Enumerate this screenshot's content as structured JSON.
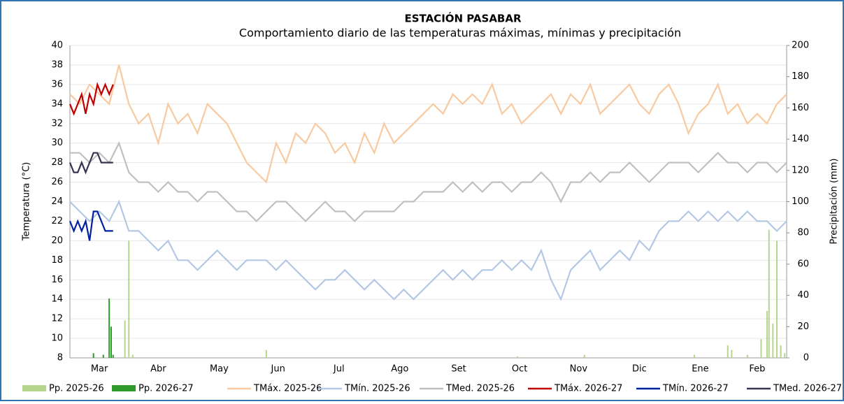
{
  "chart_data": {
    "type": "line",
    "title": "ESTACIÓN PASABAR",
    "subtitle": "Comportamiento diario de las temperaturas máximas, mínimas  y precipitación",
    "ylabel": "Temperatura (°C)",
    "y2label": "Precipitación (mm)",
    "xlim": [
      0,
      365
    ],
    "xticks": [
      {
        "value": 15,
        "label": "Mar"
      },
      {
        "value": 45,
        "label": "Abr"
      },
      {
        "value": 76,
        "label": "May"
      },
      {
        "value": 106,
        "label": "Jun"
      },
      {
        "value": 137,
        "label": "Jul"
      },
      {
        "value": 168,
        "label": "Ago"
      },
      {
        "value": 198,
        "label": "Set"
      },
      {
        "value": 229,
        "label": "Oct"
      },
      {
        "value": 259,
        "label": "Nov"
      },
      {
        "value": 290,
        "label": "Dic"
      },
      {
        "value": 321,
        "label": "Ene"
      },
      {
        "value": 350,
        "label": "Feb"
      }
    ],
    "ylim": [
      8,
      40
    ],
    "yticks": [
      8,
      10,
      12,
      14,
      16,
      18,
      20,
      22,
      24,
      26,
      28,
      30,
      32,
      34,
      36,
      38,
      40
    ],
    "y2lim": [
      0,
      200
    ],
    "y2ticks": [
      0,
      20,
      40,
      60,
      80,
      100,
      120,
      140,
      160,
      180,
      200
    ],
    "grid": true,
    "series": [
      {
        "name": "Pp. 2025-26",
        "type": "bar",
        "axis": "y2",
        "color": "#b5d48c",
        "x": [
          28,
          30,
          32,
          100,
          228,
          262,
          318,
          335,
          337,
          345,
          352,
          355,
          356,
          358,
          360,
          362,
          364
        ],
        "values": [
          24,
          75,
          2,
          5,
          1,
          2,
          2,
          8,
          5,
          2,
          12,
          30,
          82,
          22,
          75,
          8,
          3
        ]
      },
      {
        "name": "Pp. 2026-27",
        "type": "bar",
        "axis": "y2",
        "color": "#2e9a2e",
        "x": [
          12,
          17,
          20,
          21,
          22
        ],
        "values": [
          3,
          2,
          38,
          20,
          2
        ]
      },
      {
        "name": "TMáx. 2025-26",
        "type": "line",
        "color": "#f9c9a0",
        "x": [
          0,
          5,
          10,
          15,
          20,
          25,
          30,
          35,
          40,
          45,
          50,
          55,
          60,
          65,
          70,
          75,
          80,
          85,
          90,
          95,
          100,
          105,
          110,
          115,
          120,
          125,
          130,
          135,
          140,
          145,
          150,
          155,
          160,
          165,
          170,
          175,
          180,
          185,
          190,
          195,
          200,
          205,
          210,
          215,
          220,
          225,
          230,
          235,
          240,
          245,
          250,
          255,
          260,
          265,
          270,
          275,
          280,
          285,
          290,
          295,
          300,
          305,
          310,
          315,
          320,
          325,
          330,
          335,
          340,
          345,
          350,
          355,
          360,
          365
        ],
        "values": [
          35,
          34,
          36,
          35,
          34,
          38,
          34,
          32,
          33,
          30,
          34,
          32,
          33,
          31,
          34,
          33,
          32,
          30,
          28,
          27,
          26,
          30,
          28,
          31,
          30,
          32,
          31,
          29,
          30,
          28,
          31,
          29,
          32,
          30,
          31,
          32,
          33,
          34,
          33,
          35,
          34,
          35,
          34,
          36,
          33,
          34,
          32,
          33,
          34,
          35,
          33,
          35,
          34,
          36,
          33,
          34,
          35,
          36,
          34,
          33,
          35,
          36,
          34,
          31,
          33,
          34,
          36,
          33,
          34,
          32,
          33,
          32,
          34,
          35
        ]
      },
      {
        "name": "TMín. 2025-26",
        "type": "line",
        "color": "#b4c8e4",
        "x": [
          0,
          5,
          10,
          15,
          20,
          25,
          30,
          35,
          40,
          45,
          50,
          55,
          60,
          65,
          70,
          75,
          80,
          85,
          90,
          95,
          100,
          105,
          110,
          115,
          120,
          125,
          130,
          135,
          140,
          145,
          150,
          155,
          160,
          165,
          170,
          175,
          180,
          185,
          190,
          195,
          200,
          205,
          210,
          215,
          220,
          225,
          230,
          235,
          240,
          245,
          250,
          255,
          260,
          265,
          270,
          275,
          280,
          285,
          290,
          295,
          300,
          305,
          310,
          315,
          320,
          325,
          330,
          335,
          340,
          345,
          350,
          355,
          360,
          365
        ],
        "values": [
          24,
          23,
          22,
          23,
          22,
          24,
          21,
          21,
          20,
          19,
          20,
          18,
          18,
          17,
          18,
          19,
          18,
          17,
          18,
          18,
          18,
          17,
          18,
          17,
          16,
          15,
          16,
          16,
          17,
          16,
          15,
          16,
          15,
          14,
          15,
          14,
          15,
          16,
          17,
          16,
          17,
          16,
          17,
          17,
          18,
          17,
          18,
          17,
          19,
          16,
          14,
          17,
          18,
          19,
          17,
          18,
          19,
          18,
          20,
          19,
          21,
          22,
          22,
          23,
          22,
          23,
          22,
          23,
          22,
          23,
          22,
          22,
          21,
          22
        ]
      },
      {
        "name": "TMed. 2025-26",
        "type": "line",
        "color": "#c0c0c0",
        "x": [
          0,
          5,
          10,
          15,
          20,
          25,
          30,
          35,
          40,
          45,
          50,
          55,
          60,
          65,
          70,
          75,
          80,
          85,
          90,
          95,
          100,
          105,
          110,
          115,
          120,
          125,
          130,
          135,
          140,
          145,
          150,
          155,
          160,
          165,
          170,
          175,
          180,
          185,
          190,
          195,
          200,
          205,
          210,
          215,
          220,
          225,
          230,
          235,
          240,
          245,
          250,
          255,
          260,
          265,
          270,
          275,
          280,
          285,
          290,
          295,
          300,
          305,
          310,
          315,
          320,
          325,
          330,
          335,
          340,
          345,
          350,
          355,
          360,
          365
        ],
        "values": [
          29,
          29,
          28,
          29,
          28,
          30,
          27,
          26,
          26,
          25,
          26,
          25,
          25,
          24,
          25,
          25,
          24,
          23,
          23,
          22,
          23,
          24,
          24,
          23,
          22,
          23,
          24,
          23,
          23,
          22,
          23,
          23,
          23,
          23,
          24,
          24,
          25,
          25,
          25,
          26,
          25,
          26,
          25,
          26,
          26,
          25,
          26,
          26,
          27,
          26,
          24,
          26,
          26,
          27,
          26,
          27,
          27,
          28,
          27,
          26,
          27,
          28,
          28,
          28,
          27,
          28,
          29,
          28,
          28,
          27,
          28,
          28,
          27,
          28
        ]
      },
      {
        "name": "TMáx. 2026-27",
        "type": "line",
        "color": "#c00000",
        "x": [
          0,
          2,
          4,
          6,
          8,
          10,
          12,
          14,
          16,
          18,
          20,
          22
        ],
        "values": [
          34,
          33,
          34,
          35,
          33,
          35,
          34,
          36,
          35,
          36,
          35,
          36
        ]
      },
      {
        "name": "TMín. 2026-27",
        "type": "line",
        "color": "#00209f",
        "x": [
          0,
          2,
          4,
          6,
          8,
          10,
          12,
          14,
          16,
          18,
          20,
          22
        ],
        "values": [
          22,
          21,
          22,
          21,
          22,
          20,
          23,
          23,
          22,
          21,
          21,
          21
        ]
      },
      {
        "name": "TMed. 2026-27",
        "type": "line",
        "color": "#3a3050",
        "x": [
          0,
          2,
          4,
          6,
          8,
          10,
          12,
          14,
          16,
          18,
          20,
          22
        ],
        "values": [
          28,
          27,
          27,
          28,
          27,
          28,
          29,
          29,
          28,
          28,
          28,
          28
        ]
      }
    ]
  }
}
